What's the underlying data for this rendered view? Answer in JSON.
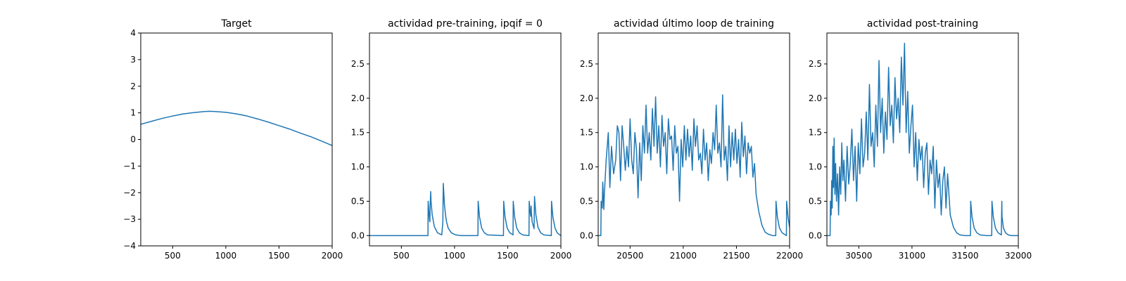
{
  "chart_data": [
    {
      "type": "line",
      "title": "Target",
      "xlim": [
        200,
        2000
      ],
      "ylim": [
        -4,
        4
      ],
      "xticks": [
        500,
        1000,
        1500,
        2000
      ],
      "yticks": [
        -4,
        -3,
        -2,
        -1,
        0,
        1,
        2,
        3,
        4
      ],
      "ytick_labels": [
        "−4",
        "−3",
        "−2",
        "−1",
        "0",
        "1",
        "2",
        "3",
        "4"
      ],
      "color": "#1f77b4",
      "series": [
        {
          "x": [
            200,
            300,
            400,
            500,
            600,
            700,
            800,
            850,
            900,
            1000,
            1100,
            1200,
            1300,
            1400,
            1500,
            1600,
            1700,
            1800,
            1900,
            2000
          ],
          "y": [
            0.57,
            0.68,
            0.79,
            0.88,
            0.96,
            1.01,
            1.05,
            1.06,
            1.05,
            1.02,
            0.96,
            0.88,
            0.77,
            0.65,
            0.52,
            0.39,
            0.24,
            0.1,
            -0.06,
            -0.23
          ]
        }
      ]
    },
    {
      "type": "line",
      "title": "actividad pre-training, ipqif = 0",
      "xlim": [
        200,
        2000
      ],
      "ylim": [
        -0.15,
        2.95
      ],
      "xticks": [
        500,
        1000,
        1500,
        2000
      ],
      "yticks": [
        0.0,
        0.5,
        1.0,
        1.5,
        2.0,
        2.5
      ],
      "ytick_labels": [
        "0.0",
        "0.5",
        "1.0",
        "1.5",
        "2.0",
        "2.5"
      ],
      "color": "#1f77b4",
      "series": [
        {
          "x": [
            200,
            750,
            752,
            760,
            765,
            768,
            771,
            776,
            779,
            790,
            810,
            840,
            880,
            890,
            894,
            900,
            905,
            910,
            915,
            925,
            940,
            970,
            1010,
            1060,
            1220,
            1222,
            1235,
            1255,
            1280,
            1310,
            1460,
            1462,
            1475,
            1495,
            1520,
            1550,
            1552,
            1565,
            1585,
            1610,
            1640,
            1700,
            1702,
            1710,
            1717,
            1720,
            1723,
            1730,
            1748,
            1752,
            1765,
            1785,
            1810,
            1840,
            1910,
            1912,
            1925,
            1945,
            1965,
            1990,
            2000
          ],
          "y": [
            0,
            0,
            0.5,
            0.32,
            0.22,
            0.2,
            0.45,
            0.64,
            0.5,
            0.3,
            0.13,
            0.04,
            0.01,
            0.2,
            0.76,
            0.6,
            0.45,
            0.38,
            0.3,
            0.2,
            0.11,
            0.04,
            0.01,
            0,
            0,
            0.5,
            0.27,
            0.11,
            0.04,
            0.01,
            0,
            0.5,
            0.27,
            0.11,
            0.04,
            0.01,
            0.5,
            0.27,
            0.11,
            0.04,
            0.01,
            0,
            0.5,
            0.35,
            0.28,
            0.43,
            0.33,
            0.2,
            0.1,
            0.57,
            0.3,
            0.12,
            0.04,
            0.01,
            0,
            0.5,
            0.27,
            0.11,
            0.04,
            0.01,
            0
          ]
        }
      ]
    },
    {
      "type": "line",
      "title": "actividad último loop de training",
      "xlim": [
        20200,
        22000
      ],
      "ylim": [
        -0.15,
        2.95
      ],
      "xticks": [
        20500,
        21000,
        21500,
        22000
      ],
      "yticks": [
        0.0,
        0.5,
        1.0,
        1.5,
        2.0,
        2.5
      ],
      "ytick_labels": [
        "0.0",
        "0.5",
        "1.0",
        "1.5",
        "2.0",
        "2.5"
      ],
      "color": "#1f77b4",
      "series": [
        {
          "x": [
            20200,
            20225,
            20228,
            20238,
            20243,
            20253,
            20258,
            20275,
            20295,
            20310,
            20325,
            20345,
            20365,
            20380,
            20395,
            20410,
            20425,
            20440,
            20455,
            20470,
            20485,
            20500,
            20515,
            20530,
            20545,
            20560,
            20575,
            20590,
            20605,
            20620,
            20635,
            20650,
            20665,
            20680,
            20695,
            20710,
            20725,
            20740,
            20755,
            20770,
            20785,
            20800,
            20815,
            20830,
            20845,
            20860,
            20875,
            20890,
            20905,
            20920,
            20935,
            20950,
            20965,
            20980,
            20995,
            21010,
            21025,
            21040,
            21055,
            21070,
            21085,
            21100,
            21115,
            21130,
            21145,
            21160,
            21175,
            21190,
            21205,
            21220,
            21235,
            21250,
            21265,
            21280,
            21295,
            21310,
            21325,
            21340,
            21355,
            21370,
            21385,
            21400,
            21415,
            21430,
            21445,
            21460,
            21475,
            21490,
            21505,
            21520,
            21535,
            21550,
            21565,
            21580,
            21595,
            21610,
            21625,
            21640,
            21655,
            21670,
            21685,
            21710,
            21740,
            21770,
            21800,
            21840,
            21870,
            21872,
            21885,
            21905,
            21930,
            21960,
            21970,
            21972,
            21985,
            22000
          ],
          "y": [
            0,
            0,
            0.5,
            0.4,
            0.78,
            0.38,
            0.6,
            1.1,
            1.5,
            0.7,
            1.3,
            0.9,
            1.1,
            1.6,
            1.5,
            0.8,
            1.6,
            1.3,
            0.95,
            1.3,
            1.0,
            1.7,
            1.1,
            0.9,
            1.5,
            1.25,
            0.55,
            1.35,
            0.8,
            1.6,
            1.2,
            1.9,
            1.2,
            1.5,
            1.1,
            1.85,
            1.3,
            2.02,
            1.2,
            1.6,
            1.0,
            1.75,
            1.3,
            1.5,
            0.9,
            1.7,
            1.4,
            1.45,
            0.95,
            1.6,
            1.2,
            1.3,
            0.5,
            1.4,
            1.0,
            1.6,
            1.1,
            1.55,
            1.15,
            1.45,
            0.95,
            1.7,
            1.3,
            1.6,
            1.1,
            1.2,
            0.9,
            1.55,
            1.1,
            1.35,
            0.8,
            1.25,
            1.05,
            1.5,
            1.25,
            1.9,
            1.2,
            1.35,
            1.0,
            2.05,
            1.1,
            1.3,
            0.8,
            1.6,
            1.0,
            1.5,
            1.1,
            1.55,
            1.05,
            1.4,
            0.85,
            1.65,
            1.15,
            1.45,
            0.9,
            1.35,
            1.2,
            1.3,
            0.85,
            1.05,
            0.6,
            0.35,
            0.15,
            0.05,
            0.02,
            0,
            0,
            0.5,
            0.27,
            0.11,
            0.04,
            0.01,
            0,
            0.5,
            0.27,
            0.12
          ]
        }
      ]
    },
    {
      "type": "line",
      "title": "actividad post-training",
      "xlim": [
        30200,
        32000
      ],
      "ylim": [
        -0.15,
        2.95
      ],
      "xticks": [
        30500,
        31000,
        31500,
        32000
      ],
      "yticks": [
        0.0,
        0.5,
        1.0,
        1.5,
        2.0,
        2.5
      ],
      "ytick_labels": [
        "0.0",
        "0.5",
        "1.0",
        "1.5",
        "2.0",
        "2.5"
      ],
      "color": "#1f77b4",
      "series": [
        {
          "x": [
            30200,
            30230,
            30233,
            30240,
            30245,
            30250,
            30256,
            30262,
            30268,
            30275,
            30282,
            30290,
            30300,
            30310,
            30320,
            30330,
            30340,
            30350,
            30360,
            30375,
            30390,
            30405,
            30420,
            30435,
            30450,
            30465,
            30480,
            30495,
            30510,
            30525,
            30540,
            30555,
            30570,
            30585,
            30600,
            30615,
            30630,
            30645,
            30660,
            30675,
            30690,
            30705,
            30720,
            30735,
            30750,
            30765,
            30780,
            30795,
            30810,
            30825,
            30840,
            30855,
            30870,
            30885,
            30900,
            30915,
            30930,
            30935,
            30945,
            30960,
            30975,
            30990,
            31005,
            31020,
            31035,
            31050,
            31065,
            31080,
            31095,
            31110,
            31125,
            31140,
            31155,
            31170,
            31185,
            31200,
            31215,
            31230,
            31245,
            31260,
            31275,
            31290,
            31305,
            31320,
            31335,
            31360,
            31390,
            31420,
            31450,
            31500,
            31550,
            31552,
            31565,
            31585,
            31610,
            31640,
            31700,
            31750,
            31752,
            31765,
            31785,
            31810,
            31840,
            31845,
            31847,
            31860,
            31880,
            31905,
            31935,
            31965,
            32000
          ],
          "y": [
            0,
            0,
            0.5,
            0.3,
            0.8,
            0.4,
            1.3,
            0.7,
            1.42,
            0.6,
            1.05,
            0.5,
            0.9,
            0.3,
            1.0,
            0.6,
            1.35,
            0.8,
            1.1,
            0.5,
            1.3,
            0.75,
            1.05,
            1.55,
            0.8,
            1.3,
            0.5,
            1.35,
            0.9,
            1.7,
            1.0,
            1.2,
            1.8,
            1.1,
            2.2,
            1.3,
            1.5,
            1.0,
            1.9,
            1.3,
            2.55,
            1.5,
            2.0,
            1.2,
            1.8,
            1.4,
            2.45,
            1.6,
            1.9,
            1.35,
            2.3,
            1.7,
            2.0,
            1.5,
            2.6,
            1.9,
            2.8,
            2.3,
            1.5,
            2.1,
            1.2,
            1.6,
            1.9,
            1.0,
            1.5,
            0.8,
            1.4,
            1.1,
            1.3,
            0.7,
            1.2,
            1.35,
            0.6,
            1.1,
            0.9,
            1.3,
            0.4,
            1.1,
            0.7,
            0.9,
            0.3,
            0.8,
            1.0,
            0.4,
            0.9,
            0.3,
            0.12,
            0.04,
            0.01,
            0,
            0,
            0.5,
            0.27,
            0.11,
            0.04,
            0.01,
            0,
            0,
            0.5,
            0.27,
            0.11,
            0.04,
            0.01,
            0.5,
            0.27,
            0.11,
            0.04,
            0.01,
            0,
            0,
            0
          ]
        }
      ]
    }
  ]
}
